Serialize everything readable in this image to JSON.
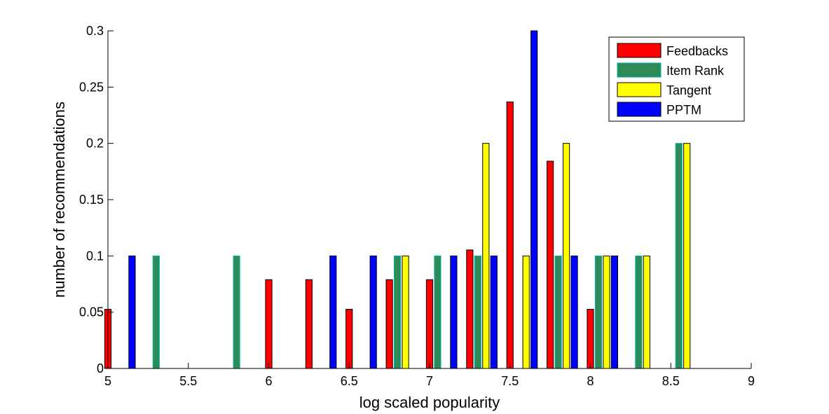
{
  "chart_data": {
    "type": "bar",
    "title": "",
    "xlabel": "log scaled popularity",
    "ylabel": "number of recommendations",
    "xlim": [
      5,
      9
    ],
    "ylim": [
      0,
      0.3
    ],
    "xticks": [
      5,
      5.5,
      6,
      6.5,
      7,
      7.5,
      8,
      8.5,
      9
    ],
    "xtick_labels": [
      "5",
      "5.5",
      "6",
      "6.5",
      "7",
      "7.5",
      "8",
      "8.5",
      "9"
    ],
    "yticks": [
      0,
      0.05,
      0.1,
      0.15,
      0.2,
      0.25,
      0.3
    ],
    "ytick_labels": [
      "0",
      "0.05",
      "0.1",
      "0.15",
      "0.2",
      "0.25",
      "0.3"
    ],
    "grid": false,
    "legend_position": "top-right",
    "bin_centers": [
      5.075,
      5.325,
      5.575,
      5.825,
      6.075,
      6.325,
      6.575,
      6.825,
      7.075,
      7.325,
      7.575,
      7.825,
      8.075,
      8.325,
      8.575,
      8.825
    ],
    "series": [
      {
        "name": "Feedbacks",
        "color": "#ff0000",
        "values": [
          0.0526,
          0,
          0,
          0,
          0.0789,
          0.0789,
          0.0526,
          0.0789,
          0.0789,
          0.1053,
          0.2368,
          0.1842,
          0.0526,
          0,
          0,
          0
        ]
      },
      {
        "name": "Item Rank",
        "color": "#2e8b57",
        "edge_color": "#00b3b3",
        "values": [
          0,
          0.1,
          0,
          0.1,
          0,
          0,
          0,
          0.1,
          0.1,
          0.1,
          0,
          0.1,
          0.1,
          0.1,
          0.2,
          0
        ]
      },
      {
        "name": "Tangent",
        "color": "#ffff00",
        "values": [
          0,
          0,
          0,
          0,
          0,
          0,
          0,
          0.1,
          0,
          0.2,
          0.1,
          0.2,
          0.1,
          0.1,
          0.2,
          0
        ]
      },
      {
        "name": "PPTM",
        "color": "#0000ff",
        "values": [
          0.1,
          0,
          0,
          0,
          0,
          0.1,
          0.1,
          0,
          0.1,
          0.1,
          0.3,
          0.1,
          0.1,
          0,
          0,
          0
        ]
      }
    ]
  }
}
